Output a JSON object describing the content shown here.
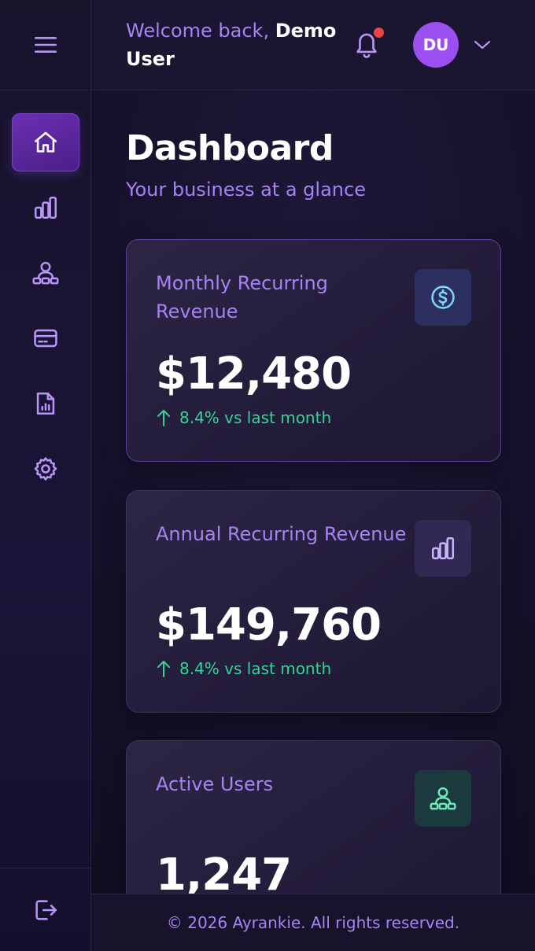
{
  "header": {
    "welcome_prefix": "Welcome back,",
    "user_name": "Demo User",
    "avatar_initials": "DU",
    "notification_dot": true
  },
  "sidebar": {
    "items": [
      {
        "icon": "home-icon",
        "active": true
      },
      {
        "icon": "bar-chart-icon",
        "active": false
      },
      {
        "icon": "users-icon",
        "active": false
      },
      {
        "icon": "credit-card-icon",
        "active": false
      },
      {
        "icon": "report-icon",
        "active": false
      },
      {
        "icon": "gear-icon",
        "active": false
      }
    ],
    "bottom_icon": "logout-icon"
  },
  "main": {
    "title": "Dashboard",
    "subtitle": "Your business at a glance",
    "cards": [
      {
        "title": "Monthly Recurring Revenue",
        "value": "$12,480",
        "change": "8.4% vs last month",
        "icon": "dollar-icon",
        "icon_color": "#7dd3fc",
        "icon_bg": "#2b3060"
      },
      {
        "title": "Annual Recurring Revenue",
        "value": "$149,760",
        "change": "8.4% vs last month",
        "icon": "bar-chart-icon",
        "icon_color": "#c4b5fd",
        "icon_bg": "#322854"
      },
      {
        "title": "Active Users",
        "value": "1,247",
        "icon": "users-icon",
        "icon_color": "#6ee7b7",
        "icon_bg": "#1b3a3e"
      }
    ]
  },
  "footer": {
    "text": "© 2026 Ayrankie. All rights reserved."
  },
  "colors": {
    "accent": "#a683f5",
    "positive": "#34d399",
    "notification": "#ef4444",
    "avatar": "#9b4ff0",
    "active_nav": "#5a25a0"
  }
}
